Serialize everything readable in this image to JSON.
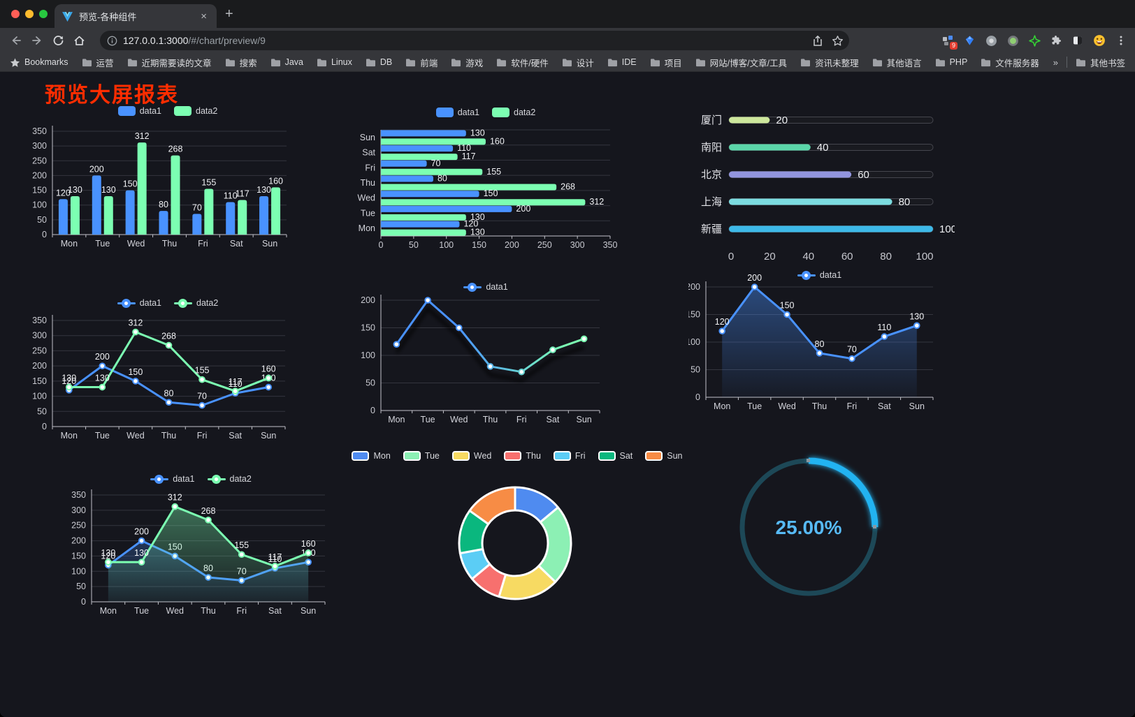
{
  "browser": {
    "tab_title": "预览-各种组件",
    "url_host": "127.0.0.1:3000",
    "url_path": "/#/chart/preview/9",
    "bookmarks_label": "Bookmarks",
    "bookmarks": [
      "运营",
      "近期需要读的文章",
      "搜索",
      "Java",
      "Linux",
      "DB",
      "前端",
      "游戏",
      "软件/硬件",
      "设计",
      "IDE",
      "项目",
      "网站/博客/文章/工具",
      "资讯未整理",
      "其他语言",
      "PHP",
      "文件服务器"
    ],
    "overflow_chevron": "»",
    "other_bookmarks": "其他书签",
    "extension_badge": "9",
    "tab_close": "×",
    "new_tab": "+"
  },
  "page": {
    "title": "预览大屏报表",
    "title_color": "#ff2d00",
    "background": "#15161d"
  },
  "chart_data": [
    {
      "id": "grouped-bar",
      "type": "bar",
      "categories": [
        "Mon",
        "Tue",
        "Wed",
        "Thu",
        "Fri",
        "Sat",
        "Sun"
      ],
      "series": [
        {
          "name": "data1",
          "color": "#4992ff",
          "values": [
            120,
            200,
            150,
            80,
            70,
            110,
            130
          ]
        },
        {
          "name": "data2",
          "color": "#7cffb2",
          "values": [
            130,
            130,
            312,
            268,
            155,
            117,
            160
          ]
        }
      ],
      "ylim": [
        0,
        350
      ],
      "ytick_step": 50,
      "grid": true,
      "legend_position": "top"
    },
    {
      "id": "horizontal-bar",
      "type": "bar",
      "orientation": "horizontal",
      "categories": [
        "Mon",
        "Tue",
        "Wed",
        "Thu",
        "Fri",
        "Sat",
        "Sun"
      ],
      "y_axis_top_to_bottom": [
        "Sun",
        "Sat",
        "Fri",
        "Thu",
        "Wed",
        "Tue",
        "Mon"
      ],
      "series": [
        {
          "name": "data1",
          "color": "#4992ff",
          "values": [
            120,
            200,
            150,
            80,
            70,
            110,
            130
          ]
        },
        {
          "name": "data2",
          "color": "#7cffb2",
          "values": [
            130,
            130,
            312,
            268,
            155,
            117,
            160
          ]
        }
      ],
      "xlim": [
        0,
        350
      ],
      "xtick_step": 50,
      "legend_position": "top"
    },
    {
      "id": "city-progress",
      "type": "bar",
      "subtype": "progress-pills",
      "categories": [
        "厦门",
        "南阳",
        "北京",
        "上海",
        "新疆"
      ],
      "values": [
        20,
        40,
        60,
        80,
        100
      ],
      "colors": [
        "#cde79c",
        "#5bd6a9",
        "#9295de",
        "#7cdce0",
        "#3db9e8"
      ],
      "xlim": [
        0,
        100
      ],
      "xticks": [
        0,
        20,
        40,
        60,
        80,
        100
      ]
    },
    {
      "id": "two-line",
      "type": "line",
      "categories": [
        "Mon",
        "Tue",
        "Wed",
        "Thu",
        "Fri",
        "Sat",
        "Sun"
      ],
      "series": [
        {
          "name": "data1",
          "color": "#4992ff",
          "values": [
            120,
            200,
            150,
            80,
            70,
            110,
            130
          ]
        },
        {
          "name": "data2",
          "color": "#7cffb2",
          "values": [
            130,
            130,
            312,
            268,
            155,
            117,
            160
          ]
        }
      ],
      "ylim": [
        0,
        350
      ],
      "ytick_step": 50,
      "show_labels": true,
      "legend_position": "top"
    },
    {
      "id": "gradient-line",
      "type": "line",
      "categories": [
        "Mon",
        "Tue",
        "Wed",
        "Thu",
        "Fri",
        "Sat",
        "Sun"
      ],
      "series": [
        {
          "name": "data1",
          "gradient": [
            "#4992ff",
            "#7cffb2"
          ],
          "values": [
            120,
            200,
            150,
            80,
            70,
            110,
            130
          ]
        }
      ],
      "ylim": [
        0,
        200
      ],
      "ytick_step": 50,
      "show_labels": false,
      "shadow": true,
      "legend_position": "top"
    },
    {
      "id": "single-area",
      "type": "area",
      "categories": [
        "Mon",
        "Tue",
        "Wed",
        "Thu",
        "Fri",
        "Sat",
        "Sun"
      ],
      "series": [
        {
          "name": "data1",
          "color": "#4992ff",
          "values": [
            120,
            200,
            150,
            80,
            70,
            110,
            130
          ]
        }
      ],
      "ylim": [
        0,
        200
      ],
      "ytick_step": 50,
      "show_labels": true,
      "legend_position": "top"
    },
    {
      "id": "two-area",
      "type": "area",
      "categories": [
        "Mon",
        "Tue",
        "Wed",
        "Thu",
        "Fri",
        "Sat",
        "Sun"
      ],
      "series": [
        {
          "name": "data1",
          "color": "#4992ff",
          "values": [
            120,
            200,
            150,
            80,
            70,
            110,
            130
          ]
        },
        {
          "name": "data2",
          "color": "#7cffb2",
          "values": [
            130,
            130,
            312,
            268,
            155,
            117,
            160
          ]
        }
      ],
      "ylim": [
        0,
        350
      ],
      "ytick_step": 50,
      "show_labels": true,
      "legend_position": "top"
    },
    {
      "id": "weekday-donut",
      "type": "pie",
      "subtype": "donut",
      "categories": [
        "Mon",
        "Tue",
        "Wed",
        "Thu",
        "Fri",
        "Sat",
        "Sun"
      ],
      "values": [
        120,
        200,
        150,
        80,
        70,
        110,
        130
      ],
      "colors": [
        "#4f8bf0",
        "#8cf0b4",
        "#f7da62",
        "#f7706e",
        "#5bcdf5",
        "#0ab77e",
        "#f78c45"
      ],
      "border_color": "#ffffff",
      "legend_position": "top"
    },
    {
      "id": "percent-gauge",
      "type": "gauge",
      "value": 25,
      "label": "25.00%",
      "arc_color": "#23b3f1",
      "track_color": "#1d4857",
      "text_color": "#57baf5"
    }
  ]
}
